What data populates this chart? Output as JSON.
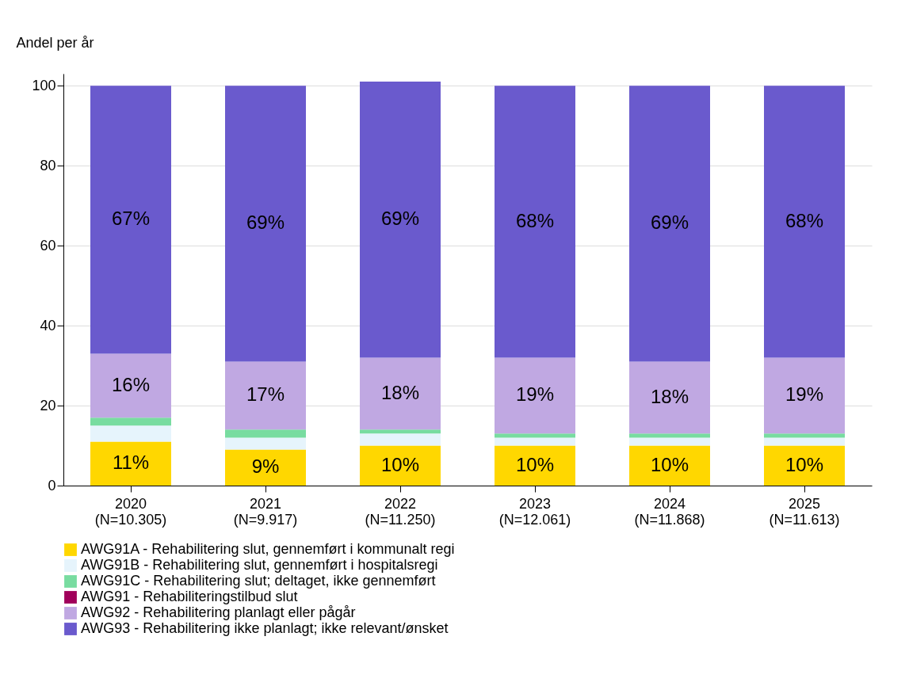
{
  "chart_data": {
    "type": "bar",
    "stacked": true,
    "ylabel": "Andel per år",
    "categories": [
      "2020\n(N=10.305)",
      "2021\n(N=9.917)",
      "2022\n(N=11.250)",
      "2023\n(N=12.061)",
      "2024\n(N=11.868)",
      "2025\n(N=11.613)"
    ],
    "series": [
      {
        "name": "AWG91A - Rehabilitering slut, gennemført i kommunalt regi",
        "color": "#ffd700",
        "values": [
          11,
          9,
          10,
          10,
          10,
          10
        ],
        "value_labels": [
          "11%",
          "9%",
          "10%",
          "10%",
          "10%",
          "10%"
        ]
      },
      {
        "name": "AWG91B - Rehabilitering slut, gennemført i hospitalsregi",
        "color": "#e6f4fc",
        "values": [
          4,
          3,
          3,
          2,
          2,
          2
        ]
      },
      {
        "name": "AWG91C - Rehabilitering slut; deltaget, ikke gennemført",
        "color": "#78dca0",
        "values": [
          2,
          2,
          1,
          1,
          1,
          1
        ]
      },
      {
        "name": "AWG91 - Rehabiliteringstilbud slut",
        "color": "#a0005a",
        "values": [
          0,
          0,
          0,
          0,
          0,
          0
        ]
      },
      {
        "name": "AWG92 - Rehabilitering planlagt eller pågår",
        "color": "#c0a8e2",
        "values": [
          16,
          17,
          18,
          19,
          18,
          19
        ],
        "value_labels": [
          "16%",
          "17%",
          "18%",
          "19%",
          "18%",
          "19%"
        ]
      },
      {
        "name": "AWG93 - Rehabilitering ikke planlagt; ikke relevant/ønsket",
        "color": "#6a5acd",
        "values": [
          67,
          69,
          69,
          68,
          69,
          68
        ],
        "value_labels": [
          "67%",
          "69%",
          "69%",
          "68%",
          "69%",
          "68%"
        ]
      }
    ],
    "ylim": [
      0,
      103
    ],
    "yticks": [
      0,
      20,
      40,
      60,
      80,
      100
    ],
    "grid": "y",
    "legend": "bottom"
  }
}
